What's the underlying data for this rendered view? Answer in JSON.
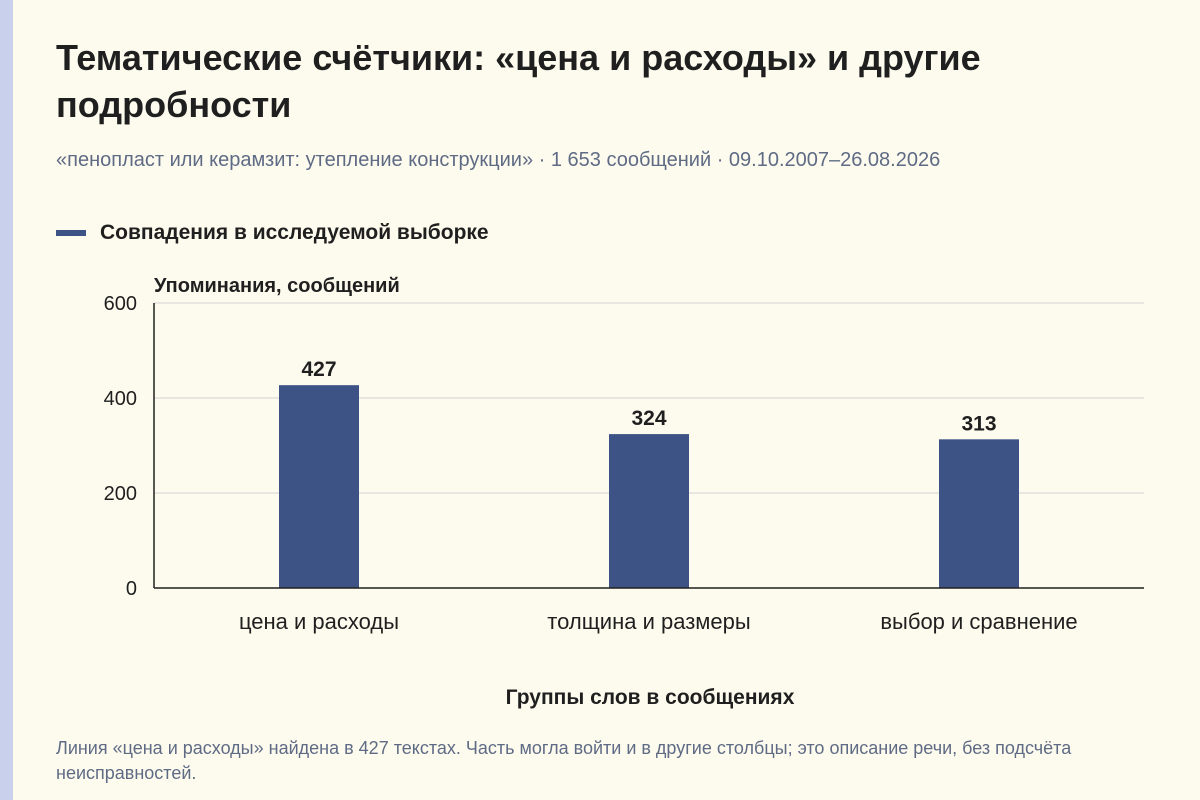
{
  "header": {
    "title": "Тематические счётчики: «цена и расходы» и другие подробности",
    "subtitle": "«пенопласт или керамзит: утепление конструкции» · 1 653 сообщений · 09.10.2007–26.08.2026"
  },
  "legend": {
    "label": "Совпадения в исследуемой выборке"
  },
  "footnote": "Линия «цена и расходы» найдена в 427 текстах. Часть могла войти и в другие столбцы; это описание речи, без подсчёта неисправностей.",
  "colors": {
    "bar": "#3d5386",
    "background": "#fdfbee",
    "accent": "#c9d0ec"
  },
  "chart_data": {
    "type": "bar",
    "categories": [
      "цена и расходы",
      "толщина и размеры",
      "выбор и сравнение"
    ],
    "series": [
      {
        "name": "Совпадения в исследуемой выборке",
        "values": [
          427,
          324,
          313
        ]
      }
    ],
    "ylabel": "Упоминания, сообщений",
    "xlabel": "Группы слов в сообщениях",
    "ylim": [
      0,
      600
    ],
    "yticks": [
      0,
      200,
      400,
      600
    ],
    "grid": true,
    "legend_position": "top-left"
  }
}
